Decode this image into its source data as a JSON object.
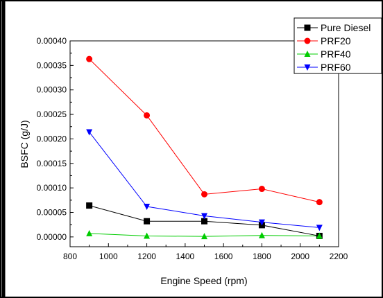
{
  "chart_data": {
    "type": "line",
    "title": "",
    "xlabel": "Engine Speed (rpm)",
    "ylabel": "BSFC (g/J)",
    "xlim": [
      800,
      2200
    ],
    "ylim": [
      -2e-05,
      0.0004
    ],
    "x_ticks": [
      "800",
      "1000",
      "1200",
      "1400",
      "1600",
      "1800",
      "2000",
      "2200"
    ],
    "y_ticks": [
      "0.00000",
      "0.00005",
      "0.00010",
      "0.00015",
      "0.00020",
      "0.00025",
      "0.00030",
      "0.00035",
      "0.00040"
    ],
    "x": [
      900,
      1200,
      1500,
      1800,
      2100
    ],
    "legend_position": "top-right",
    "grid": false,
    "series": [
      {
        "name": "Pure Diesel",
        "color": "#000000",
        "marker": "square",
        "values": [
          6.4e-05,
          3.2e-05,
          3.2e-05,
          2.4e-05,
          2e-06
        ]
      },
      {
        "name": "PRF20",
        "color": "#ff0000",
        "marker": "circle",
        "values": [
          0.000363,
          0.000248,
          8.7e-05,
          9.8e-05,
          7.1e-05
        ]
      },
      {
        "name": "PRF40",
        "color": "#00cc00",
        "marker": "triangle-up",
        "values": [
          7e-06,
          2e-06,
          1e-06,
          3e-06,
          2e-06
        ]
      },
      {
        "name": "PRF60",
        "color": "#0000ff",
        "marker": "triangle-down",
        "values": [
          0.000214,
          6.2e-05,
          4.3e-05,
          3e-05,
          1.9e-05
        ]
      }
    ]
  }
}
